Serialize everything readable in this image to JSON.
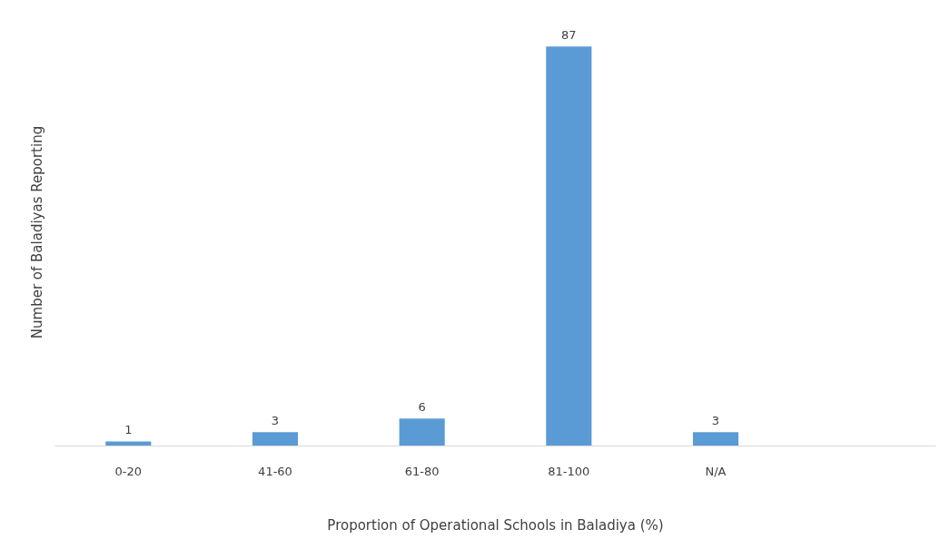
{
  "chart_data": {
    "type": "bar",
    "xlabel": "Proportion of Operational Schools in Baladiya (%)",
    "ylabel": "Number of Baladiyas Reporting",
    "categories": [
      "0-20",
      "41-60",
      "61-80",
      "81-100",
      "N/A",
      null
    ],
    "values": [
      1,
      3,
      6,
      87,
      3,
      null
    ],
    "color": "#5b9bd5",
    "data_labels": true,
    "grid": false,
    "tick_labels": "x"
  }
}
